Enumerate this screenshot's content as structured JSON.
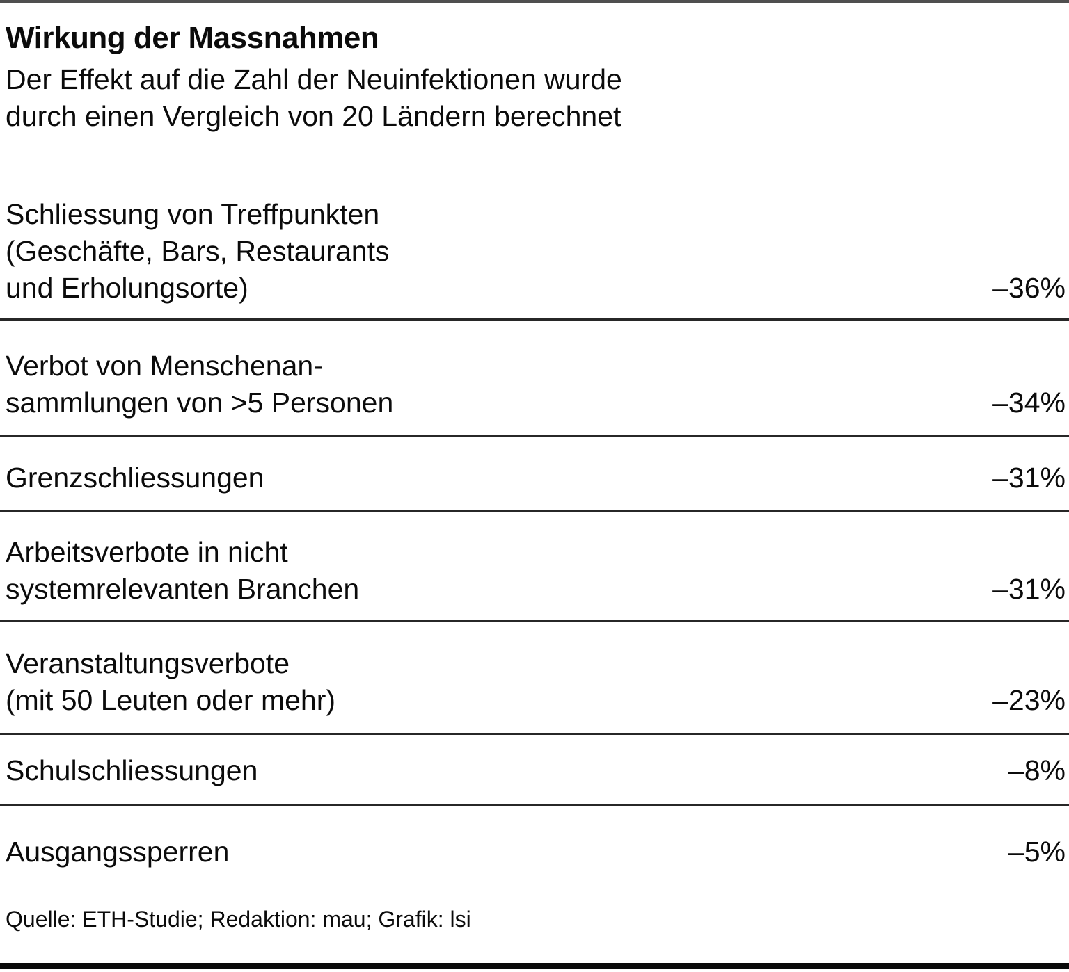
{
  "header": {
    "title": "Wirkung der Massnahmen",
    "subtitle": "Der Effekt auf die Zahl der Neuinfektionen wurde\ndurch einen Vergleich von 20 Ländern berechnet"
  },
  "rows": [
    {
      "label": "Schliessung von Treffpunkten\n(Geschäfte, Bars, Restaurants\nund Erholungsorte)",
      "value": "–36%"
    },
    {
      "label": "Verbot von Menschenan-\nsammlungen von >5 Personen",
      "value": "–34%"
    },
    {
      "label": "Grenzschliessungen",
      "value": "–31%"
    },
    {
      "label": "Arbeitsverbote in nicht\nsystemrelevanten Branchen",
      "value": "–31%"
    },
    {
      "label": "Veranstaltungsverbote\n(mit 50 Leuten oder mehr)",
      "value": "–23%"
    },
    {
      "label": "Schulschliessungen",
      "value": "–8%"
    },
    {
      "label": "Ausgangssperren",
      "value": "–5%"
    }
  ],
  "footer": {
    "source": "Quelle: ETH-Studie; Redaktion: mau; Grafik: lsi"
  },
  "colors": {
    "text": "#0b0b0b",
    "divider": "#272727",
    "top_bar": "#4f4f4f",
    "bottom_bar": "#0a0a0a",
    "background": "#ffffff"
  },
  "chart_data": {
    "type": "table",
    "title": "Wirkung der Massnahmen",
    "subtitle": "Der Effekt auf die Zahl der Neuinfektionen wurde durch einen Vergleich von 20 Ländern berechnet",
    "categories": [
      "Schliessung von Treffpunkten (Geschäfte, Bars, Restaurants und Erholungsorte)",
      "Verbot von Menschenansammlungen von >5 Personen",
      "Grenzschliessungen",
      "Arbeitsverbote in nicht systemrelevanten Branchen",
      "Veranstaltungsverbote (mit 50 Leuten oder mehr)",
      "Schulschliessungen",
      "Ausgangssperren"
    ],
    "values": [
      -36,
      -34,
      -31,
      -31,
      -23,
      -8,
      -5
    ],
    "value_labels": [
      "–36%",
      "–34%",
      "–31%",
      "–31%",
      "–23%",
      "–8%",
      "–5%"
    ],
    "source": "Quelle: ETH-Studie; Redaktion: mau; Grafik: lsi",
    "layout": {
      "value_alignment": "right",
      "row_dividers": true,
      "legend": "none"
    }
  }
}
